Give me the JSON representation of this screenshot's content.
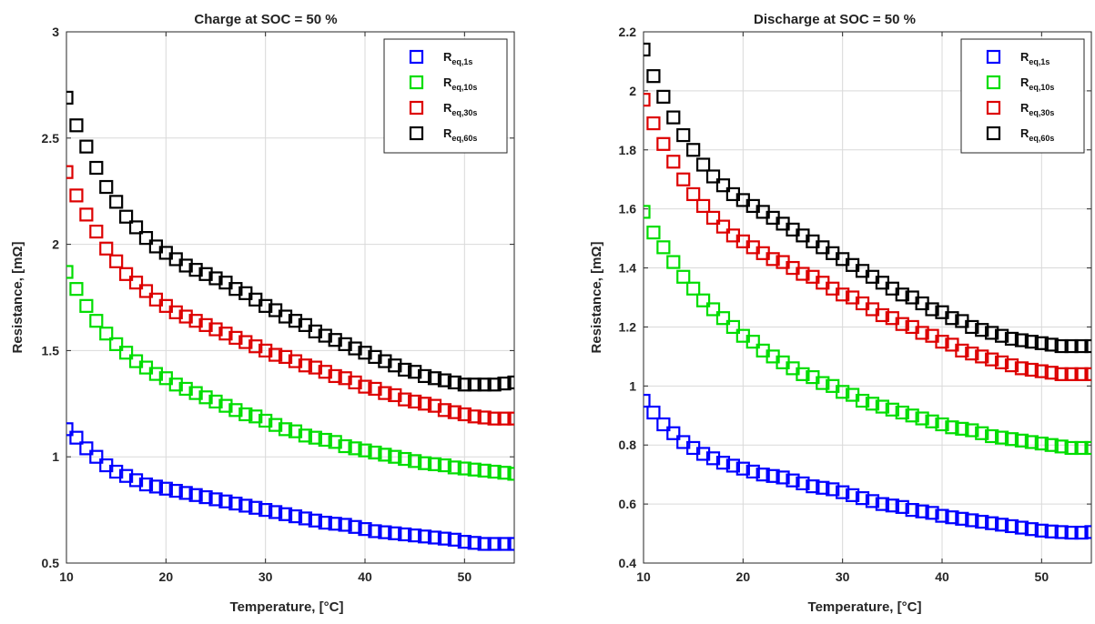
{
  "chart_data": [
    {
      "type": "scatter",
      "title": "Charge at SOC = 50 %",
      "xlabel": "Temperature, [°C]",
      "ylabel": "Resistance, [mΩ]",
      "xlim": [
        10,
        55
      ],
      "ylim": [
        0.5,
        3
      ],
      "xticks": [
        10,
        20,
        30,
        40,
        50
      ],
      "yticks": [
        0.5,
        1,
        1.5,
        2,
        2.5,
        3
      ],
      "ytick_labels": [
        "0.5",
        "1",
        "1.5",
        "2",
        "2.5",
        "3"
      ],
      "grid": true,
      "legend_position": "top-right",
      "x": [
        10,
        11,
        12,
        13,
        14,
        15,
        16,
        17,
        18,
        19,
        20,
        21,
        22,
        23,
        24,
        25,
        26,
        27,
        28,
        29,
        30,
        31,
        32,
        33,
        34,
        35,
        36,
        37,
        38,
        39,
        40,
        41,
        42,
        43,
        44,
        45,
        46,
        47,
        48,
        49,
        50,
        51,
        52,
        53,
        54,
        55
      ],
      "series": [
        {
          "name": "Req,1s",
          "label_main": "R",
          "label_sub": "eq,1s",
          "color": "#0000ff",
          "values": [
            1.13,
            1.09,
            1.04,
            1.0,
            0.96,
            0.93,
            0.91,
            0.89,
            0.87,
            0.86,
            0.85,
            0.84,
            0.83,
            0.82,
            0.81,
            0.8,
            0.79,
            0.78,
            0.77,
            0.76,
            0.75,
            0.74,
            0.73,
            0.72,
            0.71,
            0.7,
            0.69,
            0.685,
            0.68,
            0.67,
            0.66,
            0.65,
            0.645,
            0.64,
            0.635,
            0.63,
            0.625,
            0.62,
            0.615,
            0.61,
            0.6,
            0.595,
            0.59,
            0.59,
            0.59,
            0.59
          ]
        },
        {
          "name": "Req,10s",
          "label_main": "R",
          "label_sub": "eq,10s",
          "color": "#00dd00",
          "values": [
            1.87,
            1.79,
            1.71,
            1.64,
            1.58,
            1.53,
            1.49,
            1.45,
            1.42,
            1.39,
            1.37,
            1.34,
            1.32,
            1.3,
            1.28,
            1.26,
            1.24,
            1.22,
            1.2,
            1.19,
            1.17,
            1.15,
            1.13,
            1.12,
            1.1,
            1.09,
            1.08,
            1.07,
            1.05,
            1.04,
            1.03,
            1.02,
            1.01,
            1.0,
            0.99,
            0.98,
            0.97,
            0.965,
            0.96,
            0.95,
            0.945,
            0.94,
            0.935,
            0.93,
            0.925,
            0.92
          ]
        },
        {
          "name": "Req,30s",
          "label_main": "R",
          "label_sub": "eq,30s",
          "color": "#dd0000",
          "values": [
            2.34,
            2.23,
            2.14,
            2.06,
            1.98,
            1.92,
            1.86,
            1.82,
            1.78,
            1.74,
            1.71,
            1.68,
            1.66,
            1.64,
            1.62,
            1.6,
            1.58,
            1.56,
            1.54,
            1.52,
            1.5,
            1.48,
            1.47,
            1.45,
            1.43,
            1.42,
            1.4,
            1.38,
            1.37,
            1.35,
            1.33,
            1.32,
            1.3,
            1.29,
            1.27,
            1.26,
            1.25,
            1.24,
            1.22,
            1.21,
            1.2,
            1.19,
            1.185,
            1.18,
            1.18,
            1.18
          ]
        },
        {
          "name": "Req,60s",
          "label_main": "R",
          "label_sub": "eq,60s",
          "color": "#000000",
          "values": [
            2.69,
            2.56,
            2.46,
            2.36,
            2.27,
            2.2,
            2.13,
            2.08,
            2.03,
            1.99,
            1.96,
            1.93,
            1.9,
            1.88,
            1.86,
            1.84,
            1.82,
            1.79,
            1.77,
            1.74,
            1.71,
            1.69,
            1.66,
            1.64,
            1.62,
            1.59,
            1.57,
            1.55,
            1.53,
            1.51,
            1.49,
            1.47,
            1.45,
            1.43,
            1.41,
            1.4,
            1.38,
            1.37,
            1.36,
            1.35,
            1.34,
            1.34,
            1.34,
            1.34,
            1.345,
            1.35
          ]
        }
      ]
    },
    {
      "type": "scatter",
      "title": "Discharge at SOC = 50 %",
      "xlabel": "Temperature, [°C]",
      "ylabel": "Resistance, [mΩ]",
      "xlim": [
        10,
        55
      ],
      "ylim": [
        0.4,
        2.2
      ],
      "xticks": [
        10,
        20,
        30,
        40,
        50
      ],
      "yticks": [
        0.4,
        0.6,
        0.8,
        1.0,
        1.2,
        1.4,
        1.6,
        1.8,
        2.0,
        2.2
      ],
      "ytick_labels": [
        "0.4",
        "0.6",
        "0.8",
        "1",
        "1.2",
        "1.4",
        "1.6",
        "1.8",
        "2",
        "2.2"
      ],
      "grid": true,
      "legend_position": "top-right",
      "x": [
        10,
        11,
        12,
        13,
        14,
        15,
        16,
        17,
        18,
        19,
        20,
        21,
        22,
        23,
        24,
        25,
        26,
        27,
        28,
        29,
        30,
        31,
        32,
        33,
        34,
        35,
        36,
        37,
        38,
        39,
        40,
        41,
        42,
        43,
        44,
        45,
        46,
        47,
        48,
        49,
        50,
        51,
        52,
        53,
        54,
        55
      ],
      "series": [
        {
          "name": "Req,1s",
          "label_main": "R",
          "label_sub": "eq,1s",
          "color": "#0000ff",
          "values": [
            0.95,
            0.91,
            0.87,
            0.84,
            0.81,
            0.79,
            0.77,
            0.755,
            0.74,
            0.73,
            0.72,
            0.71,
            0.7,
            0.695,
            0.69,
            0.68,
            0.67,
            0.66,
            0.655,
            0.65,
            0.64,
            0.63,
            0.62,
            0.61,
            0.6,
            0.595,
            0.59,
            0.58,
            0.575,
            0.57,
            0.56,
            0.555,
            0.55,
            0.545,
            0.54,
            0.535,
            0.53,
            0.525,
            0.52,
            0.515,
            0.51,
            0.507,
            0.505,
            0.503,
            0.503,
            0.505
          ]
        },
        {
          "name": "Req,10s",
          "label_main": "R",
          "label_sub": "eq,10s",
          "color": "#00dd00",
          "values": [
            1.59,
            1.52,
            1.47,
            1.42,
            1.37,
            1.33,
            1.29,
            1.26,
            1.23,
            1.2,
            1.17,
            1.15,
            1.12,
            1.1,
            1.08,
            1.06,
            1.04,
            1.03,
            1.01,
            1.0,
            0.98,
            0.97,
            0.95,
            0.94,
            0.93,
            0.92,
            0.91,
            0.9,
            0.89,
            0.88,
            0.87,
            0.86,
            0.855,
            0.85,
            0.84,
            0.83,
            0.825,
            0.82,
            0.815,
            0.81,
            0.805,
            0.8,
            0.795,
            0.79,
            0.79,
            0.79
          ]
        },
        {
          "name": "Req,30s",
          "label_main": "R",
          "label_sub": "eq,30s",
          "color": "#dd0000",
          "values": [
            1.97,
            1.89,
            1.82,
            1.76,
            1.7,
            1.65,
            1.61,
            1.57,
            1.54,
            1.51,
            1.49,
            1.47,
            1.45,
            1.43,
            1.42,
            1.4,
            1.38,
            1.37,
            1.35,
            1.33,
            1.31,
            1.3,
            1.28,
            1.26,
            1.24,
            1.23,
            1.21,
            1.2,
            1.18,
            1.17,
            1.15,
            1.14,
            1.12,
            1.11,
            1.1,
            1.09,
            1.08,
            1.07,
            1.06,
            1.055,
            1.05,
            1.045,
            1.04,
            1.04,
            1.04,
            1.04
          ]
        },
        {
          "name": "Req,60s",
          "label_main": "R",
          "label_sub": "eq,60s",
          "color": "#000000",
          "values": [
            2.14,
            2.05,
            1.98,
            1.91,
            1.85,
            1.8,
            1.75,
            1.71,
            1.68,
            1.65,
            1.63,
            1.61,
            1.59,
            1.57,
            1.55,
            1.53,
            1.51,
            1.49,
            1.47,
            1.45,
            1.43,
            1.41,
            1.39,
            1.37,
            1.35,
            1.33,
            1.31,
            1.3,
            1.28,
            1.26,
            1.25,
            1.23,
            1.22,
            1.2,
            1.19,
            1.18,
            1.17,
            1.16,
            1.155,
            1.15,
            1.145,
            1.14,
            1.135,
            1.135,
            1.135,
            1.135
          ]
        }
      ]
    }
  ]
}
